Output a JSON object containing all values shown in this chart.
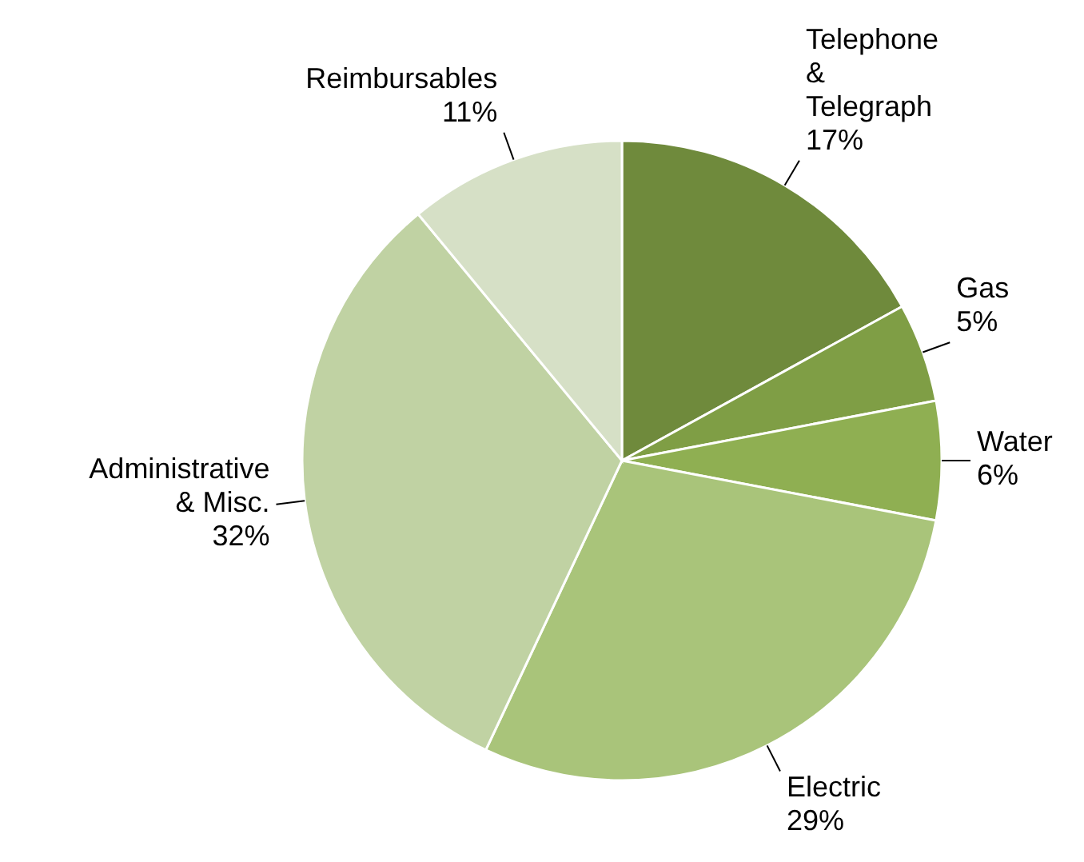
{
  "chart_data": {
    "type": "pie",
    "categories": [
      "Telephone & Telegraph",
      "Gas",
      "Water",
      "Electric",
      "Administrative & Misc.",
      "Reimbursables"
    ],
    "values": [
      17,
      5,
      6,
      29,
      32,
      11
    ],
    "value_labels": [
      "17%",
      "5%",
      "6%",
      "29%",
      "32%",
      "11%"
    ],
    "colors": [
      "#6f8a3c",
      "#7f9e45",
      "#8faf52",
      "#a9c47a",
      "#c0d2a3",
      "#d6e0c6"
    ],
    "legend": false
  }
}
